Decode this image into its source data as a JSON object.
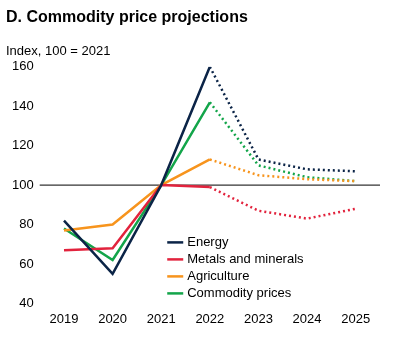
{
  "chart_data": {
    "type": "line",
    "title": "D. Commodity price projections",
    "subtitle": "Index, 100 = 2021",
    "categories": [
      "2019",
      "2020",
      "2021",
      "2022",
      "2023",
      "2024",
      "2025"
    ],
    "series": [
      {
        "name": "Energy",
        "color": "#0b2447",
        "values": [
          82,
          55,
          100,
          160,
          null,
          null,
          null
        ],
        "projection": [
          null,
          null,
          null,
          160,
          113,
          108,
          107
        ]
      },
      {
        "name": "Metals and minerals",
        "color": "#e2233d",
        "values": [
          67,
          68,
          100,
          99,
          null,
          null,
          null
        ],
        "projection": [
          null,
          null,
          null,
          99,
          87,
          83,
          88
        ]
      },
      {
        "name": "Agriculture",
        "color": "#f7941d",
        "values": [
          77,
          80,
          100,
          113,
          null,
          null,
          null
        ],
        "projection": [
          null,
          null,
          null,
          113,
          105,
          103,
          102
        ]
      },
      {
        "name": "Commodity prices",
        "color": "#13a54a",
        "values": [
          78,
          62,
          100,
          142,
          null,
          null,
          null
        ],
        "projection": [
          null,
          null,
          null,
          142,
          110,
          104,
          102
        ]
      }
    ],
    "hline": 100,
    "ylim": [
      40,
      160
    ],
    "yticks": [
      40,
      60,
      80,
      100,
      120,
      140,
      160
    ],
    "grid": false,
    "legend": "lower center"
  }
}
